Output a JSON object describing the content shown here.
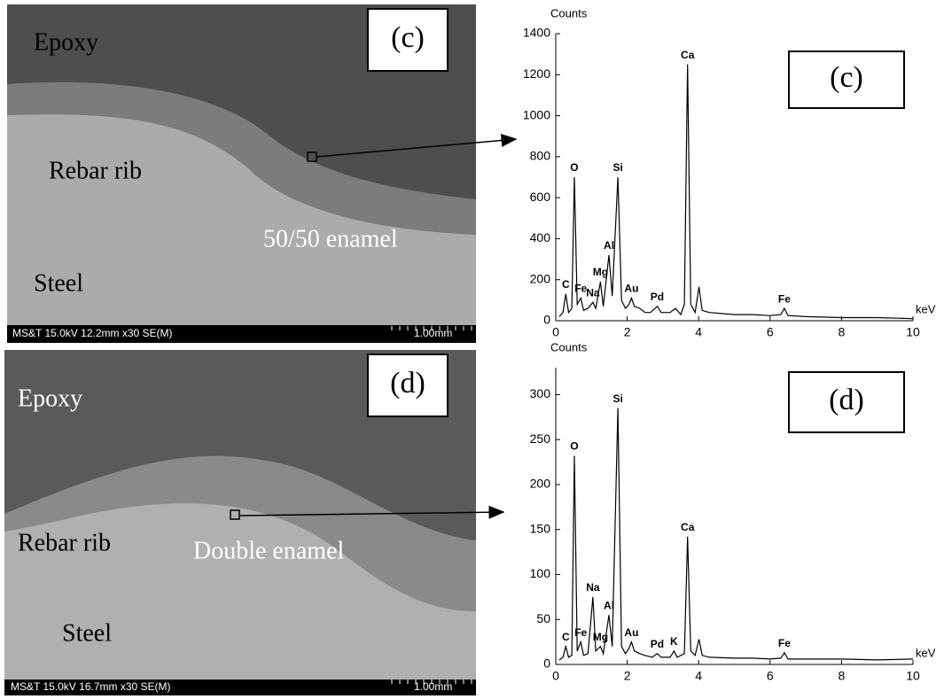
{
  "images": [
    {
      "panel": "(c)",
      "labels": [
        "Epoxy",
        "Rebar rib",
        "50/50 enamel",
        "Steel"
      ],
      "info": "MS&T 15.0kV 12.2mm x30 SE(M)",
      "scale": "1.00mm"
    },
    {
      "panel": "(d)",
      "labels": [
        "Epoxy",
        "Rebar rib",
        "Double enamel",
        "Steel"
      ],
      "info": "MS&T 15.0kV 16.7mm x30 SE(M)",
      "scale": "1.00mm"
    }
  ],
  "chart_data": [
    {
      "type": "line",
      "panel_label": "(c)",
      "y_label": "Counts",
      "x_label": "keV",
      "x": [
        0.1,
        0.2,
        0.28,
        0.36,
        0.45,
        0.52,
        0.6,
        0.7,
        0.78,
        0.9,
        1.04,
        1.12,
        1.25,
        1.33,
        1.49,
        1.58,
        1.74,
        1.84,
        1.95,
        2.05,
        2.12,
        2.2,
        2.35,
        2.5,
        2.65,
        2.84,
        2.95,
        3.2,
        3.35,
        3.5,
        3.6,
        3.69,
        3.78,
        3.9,
        4.01,
        4.1,
        4.3,
        5.0,
        5.5,
        6.0,
        6.3,
        6.4,
        6.5,
        7.0,
        8.0,
        9.0,
        10.0
      ],
      "series": [
        {
          "color": "#000000",
          "values": [
            20,
            40,
            130,
            40,
            60,
            700,
            80,
            110,
            50,
            60,
            90,
            60,
            190,
            70,
            320,
            120,
            700,
            100,
            60,
            80,
            110,
            70,
            60,
            40,
            40,
            70,
            40,
            40,
            60,
            30,
            80,
            1250,
            80,
            40,
            165,
            50,
            40,
            30,
            30,
            25,
            30,
            60,
            25,
            20,
            15,
            15,
            10
          ]
        }
      ],
      "xlim": [
        0,
        10
      ],
      "xticks": [
        0,
        2,
        4,
        6,
        8,
        10
      ],
      "ylim": [
        0,
        1400
      ],
      "yticks": [
        0,
        200,
        400,
        600,
        800,
        1000,
        1200,
        1400
      ],
      "annotations": [
        {
          "text": "C",
          "x": 0.28,
          "y": 130
        },
        {
          "text": "O",
          "x": 0.52,
          "y": 700
        },
        {
          "text": "Fe",
          "x": 0.7,
          "y": 110
        },
        {
          "text": "Na",
          "x": 1.04,
          "y": 90
        },
        {
          "text": "Mg",
          "x": 1.25,
          "y": 190
        },
        {
          "text": "Al",
          "x": 1.49,
          "y": 320
        },
        {
          "text": "Si",
          "x": 1.74,
          "y": 700
        },
        {
          "text": "Au",
          "x": 2.12,
          "y": 110
        },
        {
          "text": "Pd",
          "x": 2.84,
          "y": 70
        },
        {
          "text": "Ca",
          "x": 3.69,
          "y": 1250
        },
        {
          "text": "Fe",
          "x": 6.4,
          "y": 60
        }
      ]
    },
    {
      "type": "line",
      "panel_label": "(d)",
      "y_label": "Counts",
      "x_label": "keV",
      "x": [
        0.1,
        0.2,
        0.28,
        0.36,
        0.45,
        0.52,
        0.6,
        0.7,
        0.78,
        0.9,
        1.04,
        1.12,
        1.25,
        1.33,
        1.49,
        1.58,
        1.74,
        1.84,
        1.95,
        2.05,
        2.12,
        2.2,
        2.35,
        2.5,
        2.7,
        2.84,
        2.95,
        3.2,
        3.31,
        3.4,
        3.6,
        3.69,
        3.78,
        3.9,
        4.01,
        4.1,
        4.3,
        5.0,
        5.5,
        6.0,
        6.3,
        6.4,
        6.5,
        7.0,
        8.0,
        9.0,
        10.0
      ],
      "series": [
        {
          "color": "#000000",
          "values": [
            5,
            8,
            20,
            8,
            10,
            232,
            15,
            25,
            10,
            12,
            75,
            15,
            20,
            12,
            55,
            20,
            285,
            20,
            12,
            18,
            25,
            15,
            12,
            10,
            8,
            12,
            8,
            8,
            15,
            8,
            12,
            142,
            15,
            10,
            28,
            10,
            8,
            7,
            7,
            6,
            7,
            13,
            6,
            6,
            6,
            5,
            6
          ]
        }
      ],
      "xlim": [
        0,
        10
      ],
      "xticks": [
        0,
        2,
        4,
        6,
        8,
        10
      ],
      "ylim": [
        0,
        330
      ],
      "yticks": [
        0,
        50,
        100,
        150,
        200,
        250,
        300
      ],
      "annotations": [
        {
          "text": "C",
          "x": 0.28,
          "y": 20
        },
        {
          "text": "O",
          "x": 0.52,
          "y": 232
        },
        {
          "text": "Fe",
          "x": 0.7,
          "y": 25
        },
        {
          "text": "Na",
          "x": 1.04,
          "y": 75
        },
        {
          "text": "Mg",
          "x": 1.25,
          "y": 20
        },
        {
          "text": "Al",
          "x": 1.49,
          "y": 55
        },
        {
          "text": "Si",
          "x": 1.74,
          "y": 285
        },
        {
          "text": "Au",
          "x": 2.12,
          "y": 25
        },
        {
          "text": "Pd",
          "x": 2.84,
          "y": 12
        },
        {
          "text": "K",
          "x": 3.31,
          "y": 15
        },
        {
          "text": "Ca",
          "x": 3.69,
          "y": 142
        },
        {
          "text": "Fe",
          "x": 6.4,
          "y": 13
        }
      ]
    }
  ]
}
